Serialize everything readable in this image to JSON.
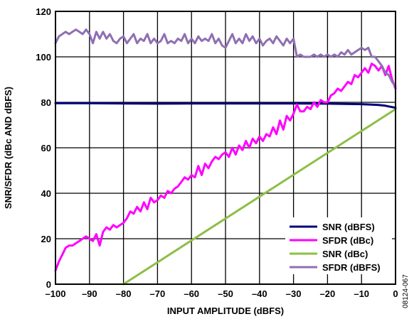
{
  "chart_data": {
    "type": "line",
    "xlabel": "INPUT AMPLITUDE (dBFS)",
    "ylabel": "SNR/SFDR (dBc AND dBFS)",
    "xlim": [
      -100,
      0
    ],
    "ylim": [
      0,
      120
    ],
    "x_ticks": [
      -100,
      -90,
      -80,
      -70,
      -60,
      -50,
      -40,
      -30,
      -20,
      -10,
      0
    ],
    "x_tick_labels": [
      "–100",
      "–90",
      "–80",
      "–70",
      "–60",
      "–50",
      "–40",
      "–30",
      "–20",
      "–10",
      "0"
    ],
    "y_ticks": [
      0,
      20,
      40,
      60,
      80,
      100,
      120
    ],
    "y_tick_labels": [
      "0",
      "20",
      "40",
      "60",
      "80",
      "100",
      "120"
    ],
    "grid": true,
    "legend_position": "bottom-right",
    "series": [
      {
        "name": "SNR (dBFS)",
        "color": "#00007a",
        "x": [
          -100,
          -90,
          -80,
          -70,
          -60,
          -50,
          -40,
          -30,
          -20,
          -15,
          -10,
          -7,
          -5,
          -3,
          -2,
          -1,
          0
        ],
        "y": [
          79.6,
          79.6,
          79.5,
          79.4,
          79.5,
          79.5,
          79.5,
          79.5,
          79.4,
          79.3,
          79.2,
          79.0,
          78.8,
          78.5,
          78.2,
          77.9,
          77.6
        ]
      },
      {
        "name": "SFDR (dBc)",
        "color": "#ff00ff",
        "x": [
          -100,
          -99,
          -98,
          -97,
          -96,
          -95,
          -94,
          -93,
          -92,
          -91,
          -90,
          -89,
          -88,
          -87,
          -86,
          -85,
          -84,
          -83,
          -82,
          -81,
          -80,
          -79,
          -78,
          -77,
          -76,
          -75,
          -74,
          -73,
          -72,
          -71,
          -70,
          -69,
          -68,
          -67,
          -66,
          -65,
          -64,
          -63,
          -62,
          -61,
          -60,
          -59,
          -58,
          -57,
          -56,
          -55,
          -54,
          -53,
          -52,
          -51,
          -50,
          -49,
          -48,
          -47,
          -46,
          -45,
          -44,
          -43,
          -42,
          -41,
          -40,
          -39,
          -38,
          -37,
          -36,
          -35,
          -34,
          -33,
          -32,
          -31,
          -30,
          -29,
          -28,
          -27,
          -26,
          -25,
          -24,
          -23,
          -22,
          -21,
          -20,
          -19,
          -18,
          -17,
          -16,
          -15,
          -14,
          -13,
          -12,
          -11,
          -10,
          -9,
          -8,
          -7,
          -6,
          -5,
          -4,
          -3,
          -2,
          -1,
          0
        ],
        "y": [
          6,
          10,
          13,
          16,
          17,
          17,
          18,
          19,
          20,
          21,
          20,
          19,
          22,
          17,
          23,
          25,
          24,
          26,
          25,
          26,
          27,
          29,
          32,
          31,
          34,
          32,
          36,
          33,
          38,
          36,
          37,
          39,
          38,
          41,
          40,
          42,
          43,
          45,
          47,
          46,
          48,
          47,
          52,
          48,
          53,
          51,
          54,
          56,
          55,
          57,
          58,
          56,
          60,
          57,
          61,
          59,
          63,
          60,
          64,
          62,
          65,
          63,
          66,
          65,
          69,
          66,
          72,
          68,
          74,
          72,
          75,
          79,
          76,
          76,
          78,
          77,
          80,
          78,
          81,
          80,
          80,
          83,
          84,
          86,
          85,
          87,
          89,
          88,
          92,
          91,
          93,
          95,
          93,
          97,
          96,
          94,
          96,
          92,
          96,
          90,
          86
        ]
      },
      {
        "name": "SNR (dBc)",
        "color": "#8cbf45",
        "x": [
          -80,
          0
        ],
        "y": [
          0,
          77
        ]
      },
      {
        "name": "SFDR (dBFS)",
        "color": "#8f6fb3",
        "x": [
          -100,
          -99,
          -98,
          -97,
          -96,
          -95,
          -94,
          -93,
          -92,
          -91,
          -90,
          -89,
          -88,
          -87,
          -86,
          -85,
          -84,
          -83,
          -82,
          -81,
          -80,
          -79,
          -78,
          -77,
          -76,
          -75,
          -74,
          -73,
          -72,
          -71,
          -70,
          -69,
          -68,
          -67,
          -66,
          -65,
          -64,
          -63,
          -62,
          -61,
          -60,
          -59,
          -58,
          -57,
          -56,
          -55,
          -54,
          -53,
          -52,
          -51,
          -50,
          -49,
          -48,
          -47,
          -46,
          -45,
          -44,
          -43,
          -42,
          -41,
          -40,
          -39,
          -38,
          -37,
          -36,
          -35,
          -34,
          -33,
          -32,
          -31,
          -30,
          -29,
          -28,
          -27,
          -26,
          -25,
          -24,
          -23,
          -22,
          -21,
          -20,
          -19,
          -18,
          -17,
          -16,
          -15,
          -14,
          -13,
          -12,
          -11,
          -10,
          -9,
          -8,
          -7,
          -6,
          -5,
          -4,
          -3,
          -2,
          -1,
          0
        ],
        "y": [
          106,
          109,
          110,
          111,
          110,
          111,
          112,
          111,
          110,
          112,
          110,
          106,
          111,
          108,
          111,
          108,
          110,
          107,
          106,
          108,
          109,
          106,
          108,
          110,
          106,
          108,
          107,
          110,
          106,
          108,
          106,
          107,
          110,
          106,
          107,
          106,
          108,
          107,
          110,
          106,
          108,
          106,
          109,
          107,
          108,
          107,
          110,
          106,
          108,
          105,
          104,
          107,
          110,
          106,
          108,
          106,
          110,
          107,
          109,
          106,
          108,
          105,
          107,
          108,
          106,
          109,
          107,
          105,
          108,
          106,
          108,
          100,
          101,
          100,
          100,
          100,
          101,
          100,
          101,
          100,
          101,
          100,
          101,
          100,
          102,
          101,
          103,
          101,
          102,
          103,
          104,
          103,
          104,
          100,
          100,
          98,
          96,
          93,
          92,
          89,
          87
        ]
      }
    ],
    "figure_id": "08124-067"
  }
}
